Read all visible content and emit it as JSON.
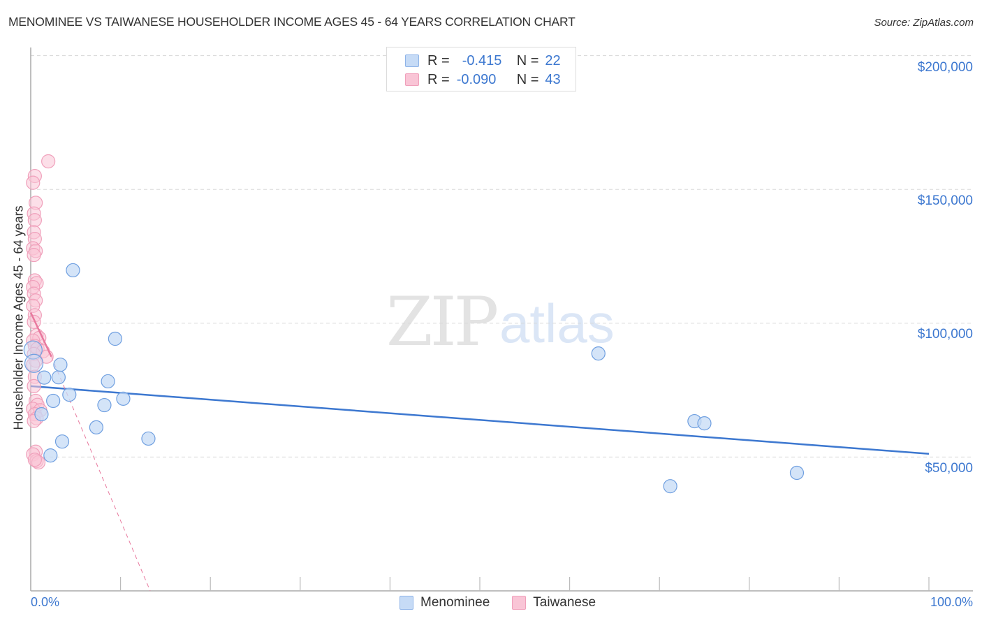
{
  "header": {
    "title": "MENOMINEE VS TAIWANESE HOUSEHOLDER INCOME AGES 45 - 64 YEARS CORRELATION CHART",
    "source": "Source: ZipAtlas.com"
  },
  "watermark": {
    "zip": "ZIP",
    "atlas": "atlas"
  },
  "stats_box": {
    "rows": [
      {
        "r_label": "R =",
        "r_value": "-0.415",
        "n_label": "N =",
        "n_value": "22",
        "color": "#a8c8f0"
      },
      {
        "r_label": "R =",
        "r_value": "-0.090",
        "n_label": "N =",
        "n_value": "43",
        "color": "#f6b4c8"
      }
    ]
  },
  "axes": {
    "y_label": "Householder Income Ages 45 - 64 years",
    "y_ticks": [
      "$200,000",
      "$150,000",
      "$100,000",
      "$50,000"
    ],
    "x_min_label": "0.0%",
    "x_max_label": "100.0%"
  },
  "legend": {
    "items": [
      {
        "label": "Menominee",
        "color": "#a8c8f0"
      },
      {
        "label": "Taiwanese",
        "color": "#f6b4c8"
      }
    ]
  },
  "colors": {
    "blue": "#3d78d0",
    "blue_fill": "#c6dbf6",
    "pink": "#e8799e",
    "pink_fill": "#f9c5d6"
  },
  "chart_data": {
    "type": "scatter",
    "title": "MENOMINEE VS TAIWANESE HOUSEHOLDER INCOME AGES 45 - 64 YEARS CORRELATION CHART",
    "xlabel": "",
    "ylabel": "Householder Income Ages 45 - 64 years",
    "xlim": [
      0,
      100
    ],
    "ylim": [
      0,
      210000
    ],
    "x_tick_labels": [
      "0.0%",
      "100.0%"
    ],
    "y_tick_labels": [
      "$50,000",
      "$100,000",
      "$150,000",
      "$200,000"
    ],
    "grid": true,
    "legend_position": "bottom",
    "series": [
      {
        "name": "Menominee",
        "R": -0.415,
        "N": 22,
        "points": [
          [
            0.1,
            90000
          ],
          [
            0.2,
            85000
          ],
          [
            1.2,
            66000
          ],
          [
            1.5,
            79700
          ],
          [
            2.2,
            50600
          ],
          [
            2.5,
            71000
          ],
          [
            3.1,
            79800
          ],
          [
            3.3,
            84500
          ],
          [
            3.5,
            55800
          ],
          [
            4.3,
            73300
          ],
          [
            4.7,
            119800
          ],
          [
            7.3,
            61100
          ],
          [
            8.2,
            69400
          ],
          [
            8.6,
            78300
          ],
          [
            9.4,
            94200
          ],
          [
            10.3,
            71800
          ],
          [
            13.1,
            56900
          ],
          [
            63.2,
            88700
          ],
          [
            71.2,
            39100
          ],
          [
            73.9,
            63400
          ],
          [
            75.0,
            62600
          ],
          [
            85.3,
            44100
          ]
        ],
        "trend": {
          "x": [
            0,
            100
          ],
          "y": [
            76500,
            51200
          ]
        }
      },
      {
        "name": "Taiwanese",
        "R": -0.09,
        "N": 43,
        "points": [
          [
            1.8,
            160500
          ],
          [
            0.3,
            155000
          ],
          [
            0.1,
            152500
          ],
          [
            0.4,
            145000
          ],
          [
            0.2,
            141000
          ],
          [
            0.3,
            138500
          ],
          [
            0.2,
            134000
          ],
          [
            0.3,
            131500
          ],
          [
            0.1,
            128000
          ],
          [
            0.4,
            127000
          ],
          [
            0.2,
            125500
          ],
          [
            0.3,
            116000
          ],
          [
            0.5,
            115000
          ],
          [
            0.1,
            113500
          ],
          [
            0.2,
            111000
          ],
          [
            0.4,
            108500
          ],
          [
            0.1,
            106500
          ],
          [
            0.3,
            103000
          ],
          [
            0.2,
            100500
          ],
          [
            0.5,
            95500
          ],
          [
            0.8,
            94500
          ],
          [
            0.1,
            93500
          ],
          [
            0.3,
            91500
          ],
          [
            0.6,
            90500
          ],
          [
            1.2,
            89500
          ],
          [
            0.2,
            88500
          ],
          [
            1.6,
            87500
          ],
          [
            0.4,
            86000
          ],
          [
            0.1,
            84500
          ],
          [
            0.3,
            80000
          ],
          [
            0.2,
            76500
          ],
          [
            0.4,
            71000
          ],
          [
            0.6,
            69500
          ],
          [
            0.1,
            68000
          ],
          [
            0.9,
            67500
          ],
          [
            0.3,
            66000
          ],
          [
            0.5,
            64500
          ],
          [
            0.2,
            63500
          ],
          [
            0.4,
            52000
          ],
          [
            0.1,
            51000
          ],
          [
            0.5,
            48500
          ],
          [
            0.7,
            48000
          ],
          [
            0.3,
            49000
          ]
        ],
        "trend_solid": {
          "x": [
            0,
            2.3
          ],
          "y": [
            104000,
            87500
          ]
        },
        "trend_dashed": {
          "x": [
            2.3,
            13.3
          ],
          "y": [
            87500,
            0
          ]
        }
      }
    ]
  }
}
